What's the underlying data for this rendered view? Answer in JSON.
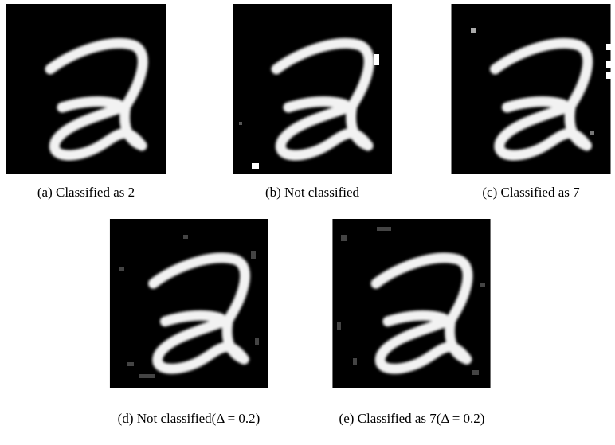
{
  "figures": [
    {
      "caption": "(a) Classified as 2"
    },
    {
      "caption": "(b) Not classified"
    },
    {
      "caption": "(c) Classified as 7"
    },
    {
      "caption": "(d) Not classified(Δ = 0.2)"
    },
    {
      "caption": "(e) Classified as 7(Δ = 0.2)"
    }
  ]
}
